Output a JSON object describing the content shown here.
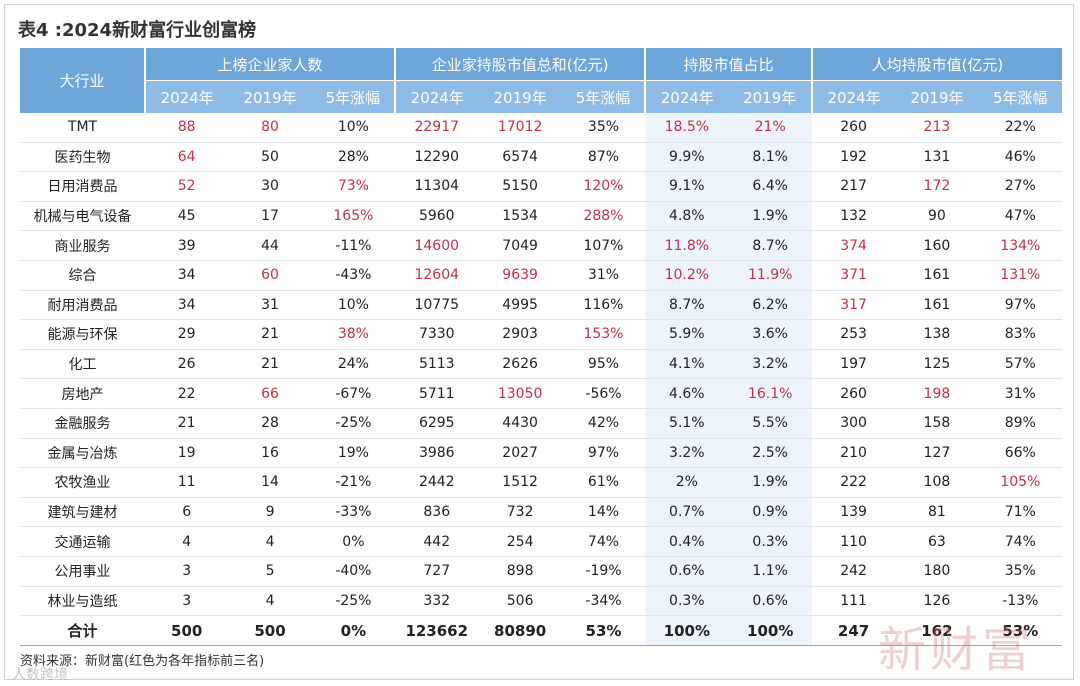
{
  "title": "表4 :2024新财富行业创富榜",
  "table": {
    "corner": "大行业",
    "groups": [
      "上榜企业家人数",
      "企业家持股市值总和(亿元)",
      "持股市值占比",
      "人均持股市值(亿元)"
    ],
    "subheaders": [
      "2024年",
      "2019年",
      "5年涨幅",
      "2024年",
      "2019年",
      "5年涨幅",
      "2024年",
      "2019年",
      "2024年",
      "2019年",
      "5年涨幅"
    ],
    "highlight_color": "#c0304a",
    "rows": [
      [
        "TMT",
        {
          "text": "88",
          "color": "#c0304a"
        },
        {
          "text": "80",
          "color": "#c0304a"
        },
        "10%",
        {
          "text": "22917",
          "color": "#c0304a"
        },
        {
          "text": "17012",
          "color": "#c0304a"
        },
        "35%",
        {
          "text": "18.5%",
          "color": "#c0304a"
        },
        {
          "text": "21%",
          "color": "#c0304a"
        },
        "260",
        {
          "text": "213",
          "color": "#c0304a"
        },
        "22%"
      ],
      [
        "医药生物",
        {
          "text": "64",
          "color": "#c0304a"
        },
        "50",
        "28%",
        "12290",
        "6574",
        "87%",
        "9.9%",
        "8.1%",
        "192",
        "131",
        "46%"
      ],
      [
        "日用消费品",
        {
          "text": "52",
          "color": "#c0304a"
        },
        "30",
        {
          "text": "73%",
          "color": "#c0304a"
        },
        "11304",
        "5150",
        {
          "text": "120%",
          "color": "#c0304a"
        },
        "9.1%",
        "6.4%",
        "217",
        {
          "text": "172",
          "color": "#c0304a"
        },
        "27%"
      ],
      [
        "机械与电气设备",
        "45",
        "17",
        {
          "text": "165%",
          "color": "#c0304a"
        },
        "5960",
        "1534",
        {
          "text": "288%",
          "color": "#c0304a"
        },
        "4.8%",
        "1.9%",
        "132",
        "90",
        "47%"
      ],
      [
        "商业服务",
        "39",
        "44",
        "-11%",
        {
          "text": "14600",
          "color": "#c0304a"
        },
        "7049",
        "107%",
        {
          "text": "11.8%",
          "color": "#c0304a"
        },
        "8.7%",
        {
          "text": "374",
          "color": "#c0304a"
        },
        "160",
        {
          "text": "134%",
          "color": "#c0304a"
        }
      ],
      [
        "综合",
        "34",
        {
          "text": "60",
          "color": "#c0304a"
        },
        "-43%",
        {
          "text": "12604",
          "color": "#c0304a"
        },
        {
          "text": "9639",
          "color": "#c0304a"
        },
        "31%",
        {
          "text": "10.2%",
          "color": "#c0304a"
        },
        {
          "text": "11.9%",
          "color": "#c0304a"
        },
        {
          "text": "371",
          "color": "#c0304a"
        },
        "161",
        {
          "text": "131%",
          "color": "#c0304a"
        }
      ],
      [
        "耐用消费品",
        "34",
        "31",
        "10%",
        "10775",
        "4995",
        "116%",
        "8.7%",
        "6.2%",
        {
          "text": "317",
          "color": "#c0304a"
        },
        "161",
        "97%"
      ],
      [
        "能源与环保",
        "29",
        "21",
        {
          "text": "38%",
          "color": "#c0304a"
        },
        "7330",
        "2903",
        {
          "text": "153%",
          "color": "#c0304a"
        },
        "5.9%",
        "3.6%",
        "253",
        "138",
        "83%"
      ],
      [
        "化工",
        "26",
        "21",
        "24%",
        "5113",
        "2626",
        "95%",
        "4.1%",
        "3.2%",
        "197",
        "125",
        "57%"
      ],
      [
        "房地产",
        "22",
        {
          "text": "66",
          "color": "#c0304a"
        },
        "-67%",
        "5711",
        {
          "text": "13050",
          "color": "#c0304a"
        },
        "-56%",
        "4.6%",
        {
          "text": "16.1%",
          "color": "#c0304a"
        },
        "260",
        {
          "text": "198",
          "color": "#c0304a"
        },
        "31%"
      ],
      [
        "金融服务",
        "21",
        "28",
        "-25%",
        "6295",
        "4430",
        "42%",
        "5.1%",
        "5.5%",
        "300",
        "158",
        "89%"
      ],
      [
        "金属与冶炼",
        "19",
        "16",
        "19%",
        "3986",
        "2027",
        "97%",
        "3.2%",
        "2.5%",
        "210",
        "127",
        "66%"
      ],
      [
        "农牧渔业",
        "11",
        "14",
        "-21%",
        "2442",
        "1512",
        "61%",
        "2%",
        "1.9%",
        "222",
        "108",
        {
          "text": "105%",
          "color": "#c0304a"
        }
      ],
      [
        "建筑与建材",
        "6",
        "9",
        "-33%",
        "836",
        "732",
        "14%",
        "0.7%",
        "0.9%",
        "139",
        "81",
        "71%"
      ],
      [
        "交通运输",
        "4",
        "4",
        "0%",
        "442",
        "254",
        "74%",
        "0.4%",
        "0.3%",
        "110",
        "63",
        "74%"
      ],
      [
        "公用事业",
        "3",
        "5",
        "-40%",
        "727",
        "898",
        "-19%",
        "0.6%",
        "1.1%",
        "242",
        "180",
        "35%"
      ],
      [
        "林业与造纸",
        "3",
        "4",
        "-25%",
        "332",
        "506",
        "-34%",
        "0.3%",
        "0.6%",
        "111",
        "126",
        "-13%"
      ]
    ],
    "total": [
      "合计",
      "500",
      "500",
      "0%",
      "123662",
      "80890",
      "53%",
      "100%",
      "100%",
      "247",
      "162",
      "53%"
    ]
  },
  "source": "资料来源：新财富(红色为各年指标前三名)",
  "watermark": "新财富",
  "credit": "人数跨境"
}
